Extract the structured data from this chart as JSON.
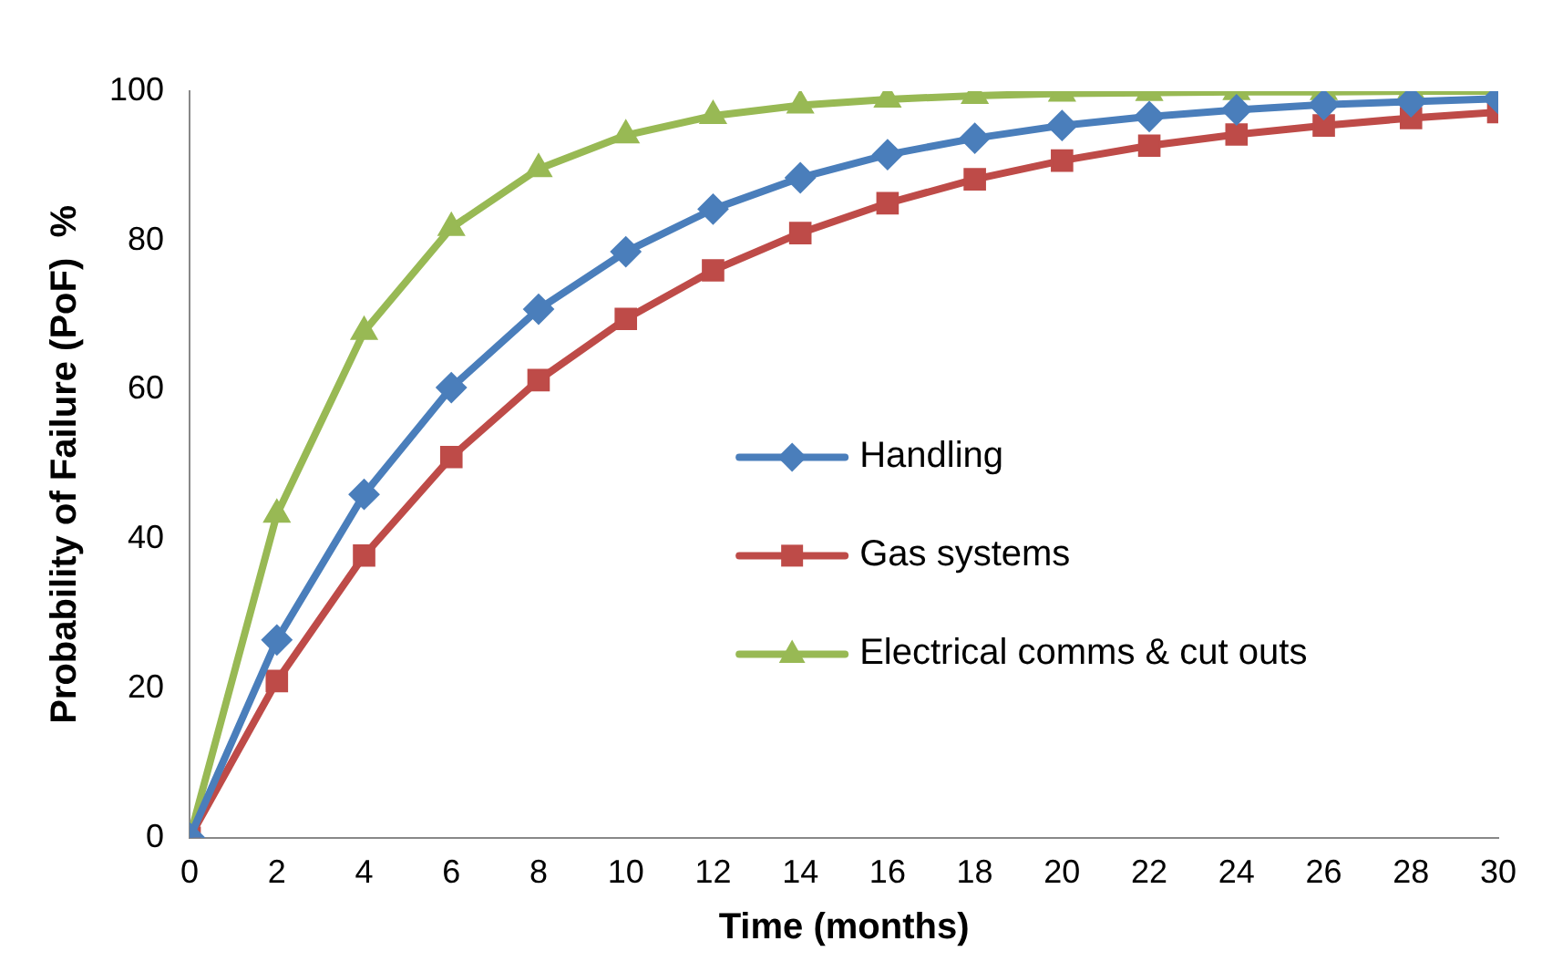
{
  "chart_data": {
    "type": "line",
    "xlabel": "Time (months)",
    "ylabel": "Probability of Failure (PoF)  %",
    "x": [
      0,
      2,
      4,
      6,
      8,
      10,
      12,
      14,
      16,
      18,
      20,
      22,
      24,
      26,
      28,
      30
    ],
    "xlim": [
      0,
      30
    ],
    "xticks": [
      0,
      2,
      4,
      6,
      8,
      10,
      12,
      14,
      16,
      18,
      20,
      22,
      24,
      26,
      28,
      30
    ],
    "ylim": [
      0,
      100
    ],
    "yticks": [
      0,
      20,
      40,
      60,
      80,
      100
    ],
    "grid": false,
    "legend": "right",
    "line_style": "solid",
    "series": [
      {
        "name": "Handling",
        "color": "#4a7ebb",
        "marker": "diamond",
        "values": [
          0,
          26.5,
          46,
          60.3,
          70.8,
          78.5,
          84.2,
          88.4,
          91.5,
          93.7,
          95.4,
          96.6,
          97.5,
          98.2,
          98.6,
          99
        ]
      },
      {
        "name": "Gas systems",
        "color": "#be4b48",
        "marker": "square",
        "values": [
          0,
          21,
          37.8,
          51,
          61.3,
          69.5,
          76,
          81,
          85,
          88.2,
          90.7,
          92.7,
          94.2,
          95.4,
          96.4,
          97.2
        ]
      },
      {
        "name": "Electrical comms & cut outs",
        "color": "#98b954",
        "marker": "triangle",
        "values": [
          0,
          43.3,
          67.8,
          81.7,
          89.6,
          94.1,
          96.7,
          98.1,
          98.9,
          99.4,
          99.7,
          99.8,
          99.9,
          99.9,
          100,
          100
        ]
      }
    ]
  }
}
